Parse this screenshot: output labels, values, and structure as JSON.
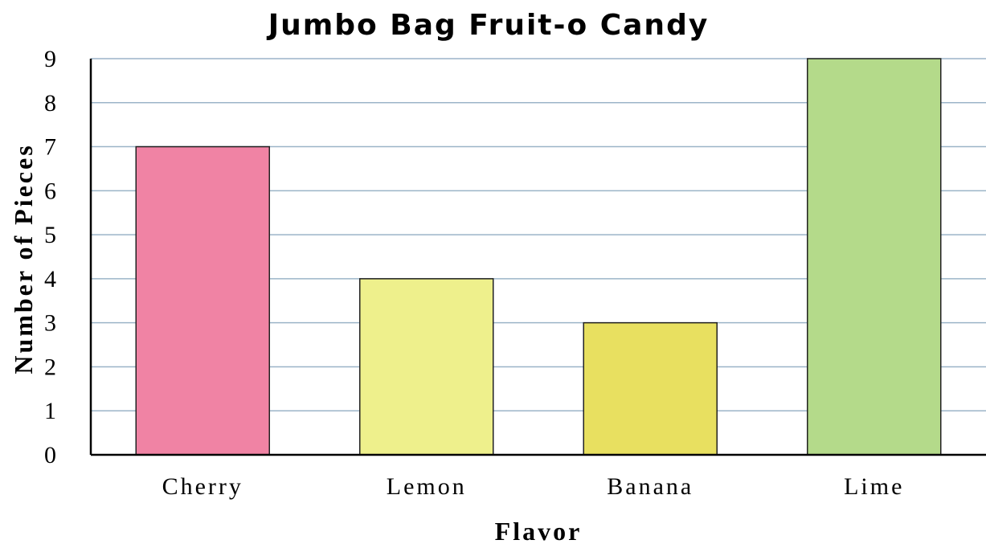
{
  "chart_data": {
    "type": "bar",
    "title": "Jumbo Bag Fruit-o Candy",
    "xlabel": "Flavor",
    "ylabel": "Number of Pieces",
    "categories": [
      "Cherry",
      "Lemon",
      "Banana",
      "Lime"
    ],
    "values": [
      7,
      4,
      3,
      9
    ],
    "colors": [
      "#f083a4",
      "#eef08c",
      "#e8e060",
      "#b4da8a"
    ],
    "ylim": [
      0,
      9
    ],
    "yticks": [
      0,
      1,
      2,
      3,
      4,
      5,
      6,
      7,
      8,
      9
    ],
    "grid": true,
    "legend": "none"
  }
}
